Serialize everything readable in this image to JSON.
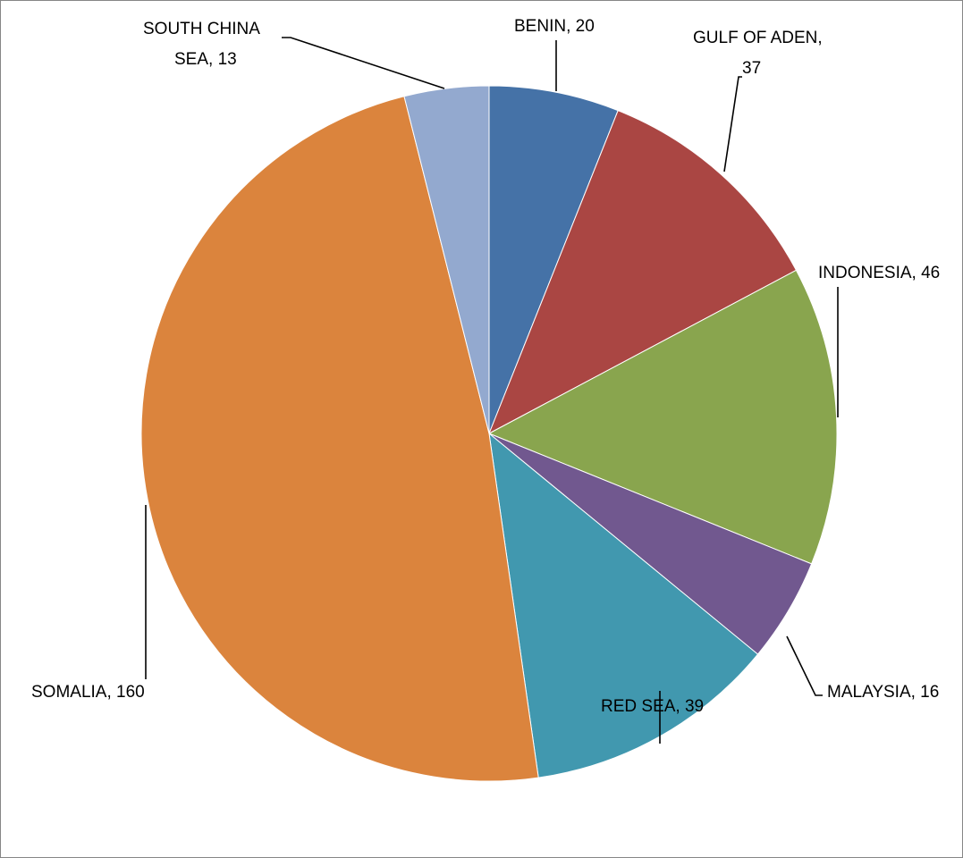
{
  "chart_data": {
    "type": "pie",
    "title": "",
    "legend": "none",
    "start_angle_deg": 0,
    "direction": "clockwise",
    "slices": [
      {
        "label": "BENIN",
        "value": 20,
        "color": "#4572A7",
        "label_text": [
          "BENIN, 20"
        ]
      },
      {
        "label": "GULF OF ADEN",
        "value": 37,
        "color": "#AA4643",
        "label_text": [
          "GULF OF ADEN,",
          "37"
        ]
      },
      {
        "label": "INDONESIA",
        "value": 46,
        "color": "#89A54E",
        "label_text": [
          "INDONESIA, 46"
        ]
      },
      {
        "label": "MALAYSIA",
        "value": 16,
        "color": "#71588F",
        "label_text": [
          "MALAYSIA, 16"
        ]
      },
      {
        "label": "RED SEA",
        "value": 39,
        "color": "#4198AF",
        "label_text": [
          "RED SEA, 39"
        ]
      },
      {
        "label": "SOMALIA",
        "value": 160,
        "color": "#DB843D",
        "label_text": [
          "SOMALIA, 160"
        ]
      },
      {
        "label": "SOUTH CHINA SEA",
        "value": 13,
        "color": "#93A9CF",
        "label_text": [
          "SOUTH CHINA",
          "SEA, 13"
        ]
      }
    ]
  }
}
